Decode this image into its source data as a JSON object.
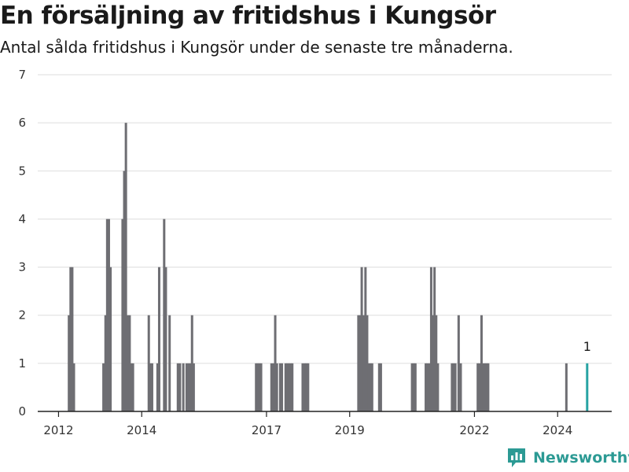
{
  "title": "En försäljning av fritidshus i Kungsör",
  "subtitle": "Antal sålda fritidshus i Kungsör under de senaste tre månaderna.",
  "brand": {
    "name": "Newsworthy",
    "color": "#2c9a94",
    "icon": "bar-chart-logo-icon"
  },
  "colors": {
    "bars": "#6e6e73",
    "highlight": "#27a3a3",
    "grid": "#dddddd",
    "axis": "#222222"
  },
  "chart_data": {
    "type": "bar",
    "title": "En försäljning av fritidshus i Kungsör",
    "xlabel": "",
    "ylabel": "",
    "ylim": [
      0,
      7
    ],
    "xlim": [
      2011.5,
      2025.3
    ],
    "y_ticks": [
      "0",
      "1",
      "2",
      "3",
      "4",
      "5",
      "6",
      "7"
    ],
    "x_ticks": [
      {
        "value": 2012.0,
        "label": "2012"
      },
      {
        "value": 2014.0,
        "label": "2014"
      },
      {
        "value": 2017.0,
        "label": "2017"
      },
      {
        "value": 2019.0,
        "label": "2019"
      },
      {
        "value": 2022.0,
        "label": "2022"
      },
      {
        "value": 2024.0,
        "label": "2024"
      }
    ],
    "grid": true,
    "series": [
      {
        "x": [
          2012.25,
          2012.29,
          2012.33,
          2012.37,
          2013.08,
          2013.13,
          2013.17,
          2013.21,
          2013.25,
          2013.54,
          2013.58,
          2013.62,
          2013.67,
          2013.71,
          2013.75,
          2013.79,
          2014.17,
          2014.21,
          2014.25,
          2014.38,
          2014.42,
          2014.54,
          2014.58,
          2014.67,
          2014.87,
          2014.92,
          2015.0,
          2015.08,
          2015.13,
          2015.17,
          2015.21,
          2015.25,
          2016.75,
          2016.79,
          2016.83,
          2016.87,
          2017.12,
          2017.17,
          2017.21,
          2017.25,
          2017.33,
          2017.37,
          2017.46,
          2017.5,
          2017.54,
          2017.58,
          2017.62,
          2017.87,
          2017.92,
          2017.96,
          2018.0,
          2019.21,
          2019.25,
          2019.29,
          2019.33,
          2019.38,
          2019.42,
          2019.46,
          2019.5,
          2019.54,
          2019.71,
          2019.75,
          2020.5,
          2020.54,
          2020.58,
          2020.83,
          2020.87,
          2020.92,
          2020.96,
          2021.0,
          2021.04,
          2021.08,
          2021.12,
          2021.46,
          2021.5,
          2021.54,
          2021.62,
          2021.67,
          2022.08,
          2022.12,
          2022.17,
          2022.21,
          2022.25,
          2022.29,
          2022.33,
          2024.21
        ],
        "values": [
          2,
          3,
          3,
          1,
          1,
          2,
          4,
          4,
          3,
          4,
          5,
          6,
          2,
          2,
          1,
          1,
          2,
          1,
          1,
          1,
          3,
          4,
          3,
          2,
          1,
          1,
          1,
          1,
          1,
          1,
          2,
          1,
          1,
          1,
          1,
          1,
          1,
          1,
          2,
          1,
          1,
          1,
          1,
          1,
          1,
          1,
          1,
          1,
          1,
          1,
          1,
          2,
          2,
          3,
          2,
          3,
          2,
          1,
          1,
          1,
          1,
          1,
          1,
          1,
          1,
          1,
          1,
          1,
          3,
          2,
          3,
          2,
          1,
          1,
          1,
          1,
          2,
          1,
          1,
          1,
          2,
          1,
          1,
          1,
          1,
          1
        ]
      }
    ],
    "highlight": {
      "x": 2024.71,
      "value": 1,
      "label": "1"
    }
  }
}
